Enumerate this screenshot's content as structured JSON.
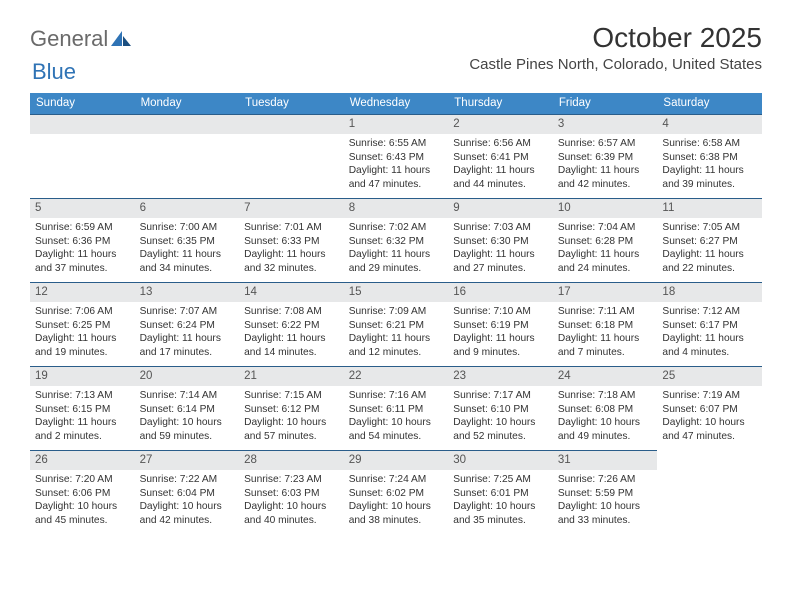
{
  "brand": {
    "part1": "General",
    "part2": "Blue"
  },
  "title": "October 2025",
  "location": "Castle Pines North, Colorado, United States",
  "colors": {
    "header_bg": "#3d87c6",
    "daynum_bg": "#e7e8e9",
    "rule": "#2a5d8a",
    "brand_blue": "#2f73b5"
  },
  "weekdays": [
    "Sunday",
    "Monday",
    "Tuesday",
    "Wednesday",
    "Thursday",
    "Friday",
    "Saturday"
  ],
  "leading_blanks": 3,
  "days": [
    {
      "n": "1",
      "sunrise": "6:55 AM",
      "sunset": "6:43 PM",
      "dl": "11 hours and 47 minutes."
    },
    {
      "n": "2",
      "sunrise": "6:56 AM",
      "sunset": "6:41 PM",
      "dl": "11 hours and 44 minutes."
    },
    {
      "n": "3",
      "sunrise": "6:57 AM",
      "sunset": "6:39 PM",
      "dl": "11 hours and 42 minutes."
    },
    {
      "n": "4",
      "sunrise": "6:58 AM",
      "sunset": "6:38 PM",
      "dl": "11 hours and 39 minutes."
    },
    {
      "n": "5",
      "sunrise": "6:59 AM",
      "sunset": "6:36 PM",
      "dl": "11 hours and 37 minutes."
    },
    {
      "n": "6",
      "sunrise": "7:00 AM",
      "sunset": "6:35 PM",
      "dl": "11 hours and 34 minutes."
    },
    {
      "n": "7",
      "sunrise": "7:01 AM",
      "sunset": "6:33 PM",
      "dl": "11 hours and 32 minutes."
    },
    {
      "n": "8",
      "sunrise": "7:02 AM",
      "sunset": "6:32 PM",
      "dl": "11 hours and 29 minutes."
    },
    {
      "n": "9",
      "sunrise": "7:03 AM",
      "sunset": "6:30 PM",
      "dl": "11 hours and 27 minutes."
    },
    {
      "n": "10",
      "sunrise": "7:04 AM",
      "sunset": "6:28 PM",
      "dl": "11 hours and 24 minutes."
    },
    {
      "n": "11",
      "sunrise": "7:05 AM",
      "sunset": "6:27 PM",
      "dl": "11 hours and 22 minutes."
    },
    {
      "n": "12",
      "sunrise": "7:06 AM",
      "sunset": "6:25 PM",
      "dl": "11 hours and 19 minutes."
    },
    {
      "n": "13",
      "sunrise": "7:07 AM",
      "sunset": "6:24 PM",
      "dl": "11 hours and 17 minutes."
    },
    {
      "n": "14",
      "sunrise": "7:08 AM",
      "sunset": "6:22 PM",
      "dl": "11 hours and 14 minutes."
    },
    {
      "n": "15",
      "sunrise": "7:09 AM",
      "sunset": "6:21 PM",
      "dl": "11 hours and 12 minutes."
    },
    {
      "n": "16",
      "sunrise": "7:10 AM",
      "sunset": "6:19 PM",
      "dl": "11 hours and 9 minutes."
    },
    {
      "n": "17",
      "sunrise": "7:11 AM",
      "sunset": "6:18 PM",
      "dl": "11 hours and 7 minutes."
    },
    {
      "n": "18",
      "sunrise": "7:12 AM",
      "sunset": "6:17 PM",
      "dl": "11 hours and 4 minutes."
    },
    {
      "n": "19",
      "sunrise": "7:13 AM",
      "sunset": "6:15 PM",
      "dl": "11 hours and 2 minutes."
    },
    {
      "n": "20",
      "sunrise": "7:14 AM",
      "sunset": "6:14 PM",
      "dl": "10 hours and 59 minutes."
    },
    {
      "n": "21",
      "sunrise": "7:15 AM",
      "sunset": "6:12 PM",
      "dl": "10 hours and 57 minutes."
    },
    {
      "n": "22",
      "sunrise": "7:16 AM",
      "sunset": "6:11 PM",
      "dl": "10 hours and 54 minutes."
    },
    {
      "n": "23",
      "sunrise": "7:17 AM",
      "sunset": "6:10 PM",
      "dl": "10 hours and 52 minutes."
    },
    {
      "n": "24",
      "sunrise": "7:18 AM",
      "sunset": "6:08 PM",
      "dl": "10 hours and 49 minutes."
    },
    {
      "n": "25",
      "sunrise": "7:19 AM",
      "sunset": "6:07 PM",
      "dl": "10 hours and 47 minutes."
    },
    {
      "n": "26",
      "sunrise": "7:20 AM",
      "sunset": "6:06 PM",
      "dl": "10 hours and 45 minutes."
    },
    {
      "n": "27",
      "sunrise": "7:22 AM",
      "sunset": "6:04 PM",
      "dl": "10 hours and 42 minutes."
    },
    {
      "n": "28",
      "sunrise": "7:23 AM",
      "sunset": "6:03 PM",
      "dl": "10 hours and 40 minutes."
    },
    {
      "n": "29",
      "sunrise": "7:24 AM",
      "sunset": "6:02 PM",
      "dl": "10 hours and 38 minutes."
    },
    {
      "n": "30",
      "sunrise": "7:25 AM",
      "sunset": "6:01 PM",
      "dl": "10 hours and 35 minutes."
    },
    {
      "n": "31",
      "sunrise": "7:26 AM",
      "sunset": "5:59 PM",
      "dl": "10 hours and 33 minutes."
    }
  ],
  "labels": {
    "sunrise": "Sunrise: ",
    "sunset": "Sunset: ",
    "daylight": "Daylight: "
  }
}
